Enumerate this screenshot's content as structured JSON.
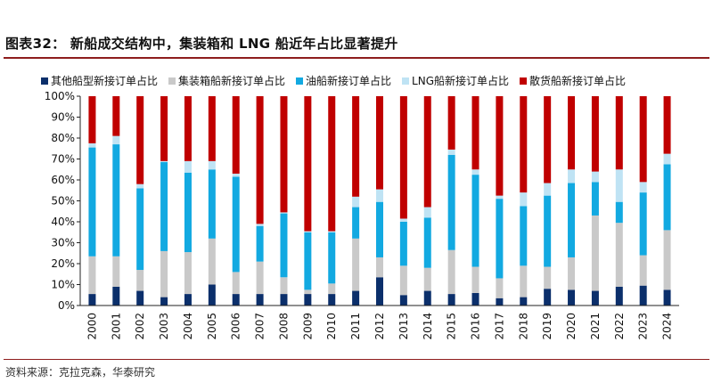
{
  "header": {
    "title": "图表32： 新船成交结构中，集装箱和 LNG 船近年占比显著提升"
  },
  "footer": {
    "source": "资料来源：克拉克森，华泰研究"
  },
  "chart_data": {
    "type": "bar",
    "stacked": true,
    "title": "图表32： 新船成交结构中，集装箱和 LNG 船近年占比显著提升",
    "xlabel": "",
    "ylabel": "",
    "ylim": [
      0,
      100
    ],
    "y_ticks": [
      "0%",
      "10%",
      "20%",
      "30%",
      "40%",
      "50%",
      "60%",
      "70%",
      "80%",
      "90%",
      "100%"
    ],
    "grid": false,
    "legend_position": "top",
    "categories": [
      "2000",
      "2001",
      "2002",
      "2003",
      "2004",
      "2005",
      "2006",
      "2007",
      "2008",
      "2009",
      "2010",
      "2011",
      "2012",
      "2013",
      "2014",
      "2015",
      "2016",
      "2017",
      "2018",
      "2019",
      "2020",
      "2021",
      "2022",
      "2023",
      "2024"
    ],
    "series": [
      {
        "name": "其他船型新接订单占比",
        "color": "#0b2f6b",
        "values": [
          5.5,
          9,
          7,
          4,
          5.5,
          10,
          5.5,
          5.5,
          5.5,
          5.5,
          5.5,
          7,
          13.5,
          5,
          7,
          5.5,
          6,
          3.5,
          4,
          8,
          7.5,
          7,
          9,
          9.5,
          7.5
        ]
      },
      {
        "name": "集装箱船新接订单占比",
        "color": "#c9c9c9",
        "values": [
          18,
          14.5,
          10,
          22,
          20,
          22,
          10.5,
          15.5,
          8,
          2,
          5,
          25,
          9.5,
          14,
          11,
          21,
          12.5,
          9.5,
          15,
          10.5,
          15.5,
          36,
          30.5,
          14.5,
          28.5
        ]
      },
      {
        "name": "油船新接订单占比",
        "color": "#12a9e1",
        "values": [
          52,
          53.5,
          39,
          42.5,
          38,
          33,
          45.5,
          17,
          30.5,
          27.5,
          24.5,
          15,
          26.5,
          21,
          24,
          45.5,
          44,
          38,
          28.5,
          34,
          35.5,
          16,
          10,
          30,
          31.5
        ]
      },
      {
        "name": "LNG船新接订单占比",
        "color": "#bfe3f4",
        "values": [
          2,
          4,
          2,
          0.5,
          5.5,
          4,
          1.5,
          1,
          0.5,
          0.5,
          0.5,
          5,
          6,
          1.5,
          5,
          2.5,
          2.5,
          1.5,
          6.5,
          6,
          6.5,
          5,
          15.5,
          5,
          5
        ]
      },
      {
        "name": "散货船新接订单占比",
        "color": "#c00000",
        "values": [
          22.5,
          19,
          42,
          31,
          31,
          31,
          37,
          61,
          55.5,
          64.5,
          64.5,
          48,
          44.5,
          58.5,
          53,
          25.5,
          35,
          47.5,
          46,
          41.5,
          35,
          36,
          35,
          41,
          27.5
        ]
      }
    ]
  }
}
